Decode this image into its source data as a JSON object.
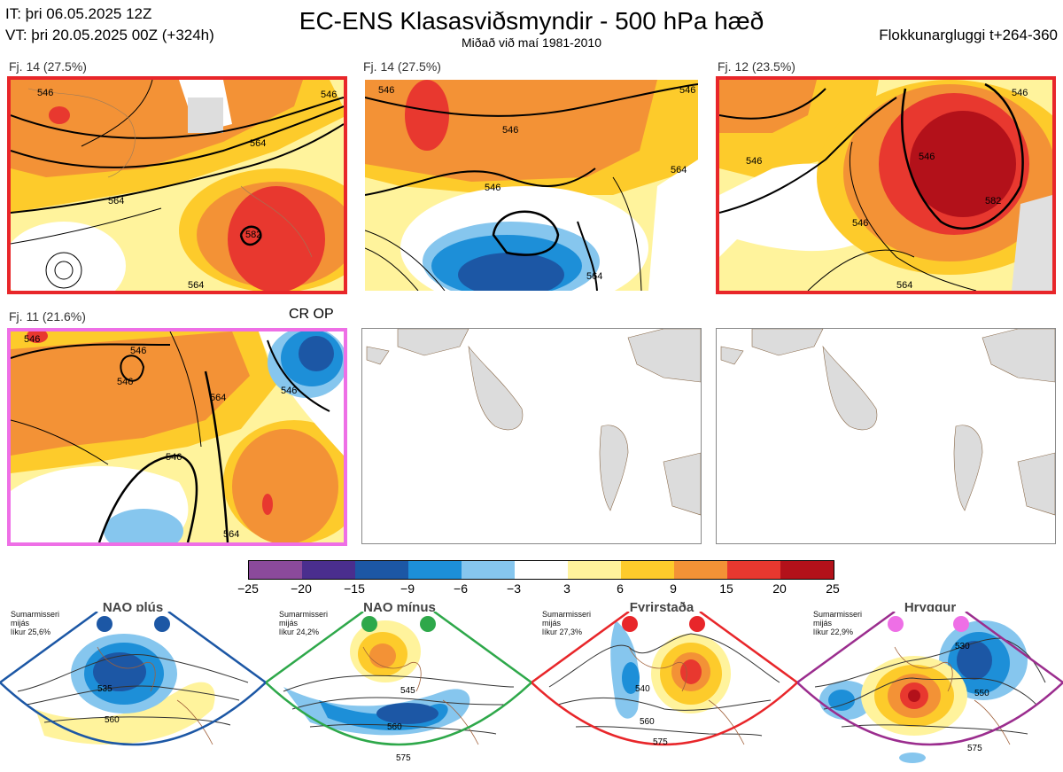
{
  "header": {
    "it_line": "IT: þri 06.05.2025 12Z",
    "vt_line": "VT: þri 20.05.2025 00Z  (+324h)",
    "title": "EC-ENS Klasasviðsmyndir - 500 hPa hæð",
    "subtitle": "Miðað við maí 1981-2010",
    "window": "Flokkunargluggi t+264-360"
  },
  "panels": [
    {
      "label": "Fj. 14 (27.5%)",
      "border": "#e8262a",
      "contours": [
        "546",
        "564",
        "582",
        "564",
        "564",
        "546"
      ]
    },
    {
      "label": "Fj. 14 (27.5%)",
      "border": "#ffffff",
      "contours": [
        "546",
        "546",
        "564",
        "546",
        "564",
        "546"
      ]
    },
    {
      "label": "Fj. 12 (23.5%)",
      "border": "#e8262a",
      "contours": [
        "546",
        "546",
        "546",
        "582",
        "564",
        "546"
      ]
    },
    {
      "label": "Fj. 11 (21.6%)",
      "border": "#ee6fe6",
      "tag": "CR OP",
      "contours": [
        "546",
        "546",
        "546",
        "564",
        "546",
        "564",
        "546"
      ]
    }
  ],
  "colorbar": {
    "colors": [
      "#8b4a9b",
      "#4a2e8e",
      "#1c57a5",
      "#1d8fd8",
      "#86c6ee",
      "#ffffff",
      "#fff39c",
      "#fdcb2b",
      "#f39236",
      "#e8382f",
      "#b3111a"
    ],
    "ticks": [
      "−25",
      "−20",
      "−15",
      "−9",
      "−6",
      "−3",
      "3",
      "6",
      "9",
      "15",
      "20",
      "25"
    ]
  },
  "regimes": [
    {
      "name": "NAO plús",
      "info": [
        "Sumarmisseri",
        "mijás",
        "líkur 25,6%"
      ],
      "color": "#1c57a5",
      "contours": [
        "535",
        "560"
      ]
    },
    {
      "name": "NAO mínus",
      "info": [
        "Sumarmisseri",
        "mijás",
        "líkur 24,2%"
      ],
      "color": "#2ea84a",
      "contours": [
        "545",
        "560",
        "575"
      ]
    },
    {
      "name": "Fyrirstaða",
      "info": [
        "Sumarmisseri",
        "mijás",
        "líkur 27,3%"
      ],
      "color": "#e8262a",
      "contours": [
        "540",
        "560",
        "575"
      ]
    },
    {
      "name": "Hryggur",
      "info": [
        "Sumarmisseri",
        "mijás",
        "líkur 22,9%"
      ],
      "color": "#ee6fe6",
      "contours": [
        "530",
        "550",
        "575"
      ]
    }
  ]
}
